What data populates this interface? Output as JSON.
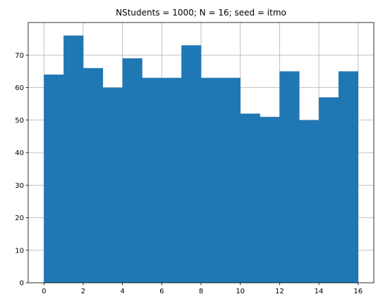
{
  "chart_data": {
    "type": "bar",
    "title": "NStudents = 1000; N = 16; seed = itmo",
    "xlabel": "",
    "ylabel": "",
    "bin_edges": [
      0,
      1,
      2,
      3,
      4,
      5,
      6,
      7,
      8,
      9,
      10,
      11,
      12,
      13,
      14,
      15,
      16
    ],
    "values": [
      64,
      76,
      66,
      60,
      69,
      63,
      63,
      73,
      63,
      63,
      52,
      51,
      65,
      50,
      57,
      65
    ],
    "xlim": [
      -0.8,
      16.8
    ],
    "ylim": [
      0,
      80
    ],
    "xticks": [
      0,
      2,
      4,
      6,
      8,
      10,
      12,
      14,
      16
    ],
    "yticks": [
      0,
      10,
      20,
      30,
      40,
      50,
      60,
      70
    ],
    "grid": true,
    "bar_color": "#1f77b4",
    "grid_color": "#b0b0b0"
  }
}
